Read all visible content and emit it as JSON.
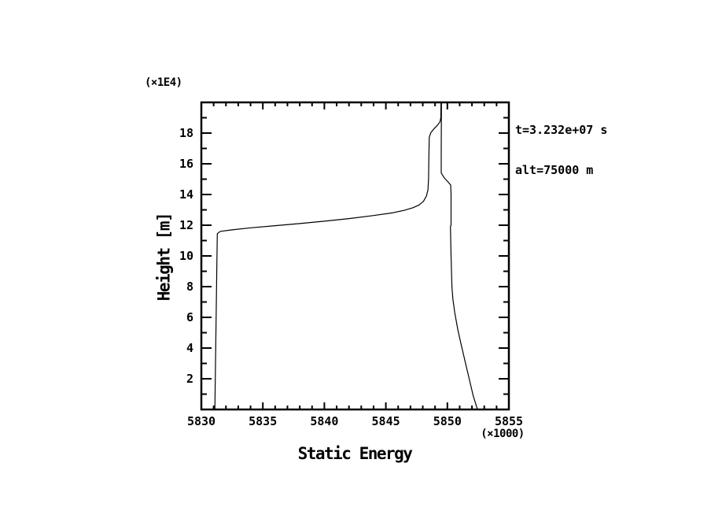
{
  "page": {
    "background": "#ffffff",
    "ink": "#000000"
  },
  "chart_data": {
    "type": "line",
    "title": "",
    "xlabel": "Static Energy",
    "ylabel": "Height [m]",
    "x_scale_label": "(×1000)",
    "y_scale_label": "(×1E4)",
    "annotation_lines": [
      "t=3.232e+07 s",
      "alt=75000 m"
    ],
    "xlim": [
      5830,
      5855
    ],
    "ylim": [
      0,
      20
    ],
    "x_major_ticks": [
      5830,
      5835,
      5840,
      5845,
      5850,
      5855
    ],
    "x_minor_step": 1,
    "y_major_ticks": [
      2,
      4,
      6,
      8,
      10,
      12,
      14,
      16,
      18
    ],
    "y_minor_step": 1,
    "grid": false,
    "legend": "none",
    "series": [
      {
        "name": "static-energy-profile",
        "color": "#000000",
        "points": [
          [
            5831.1,
            0.0
          ],
          [
            5831.15,
            3.0
          ],
          [
            5831.2,
            6.0
          ],
          [
            5831.25,
            9.0
          ],
          [
            5831.3,
            11.45
          ],
          [
            5831.55,
            11.6
          ],
          [
            5832.5,
            11.7
          ],
          [
            5834.0,
            11.83
          ],
          [
            5836.0,
            11.97
          ],
          [
            5838.0,
            12.11
          ],
          [
            5840.0,
            12.26
          ],
          [
            5842.0,
            12.43
          ],
          [
            5844.0,
            12.63
          ],
          [
            5845.5,
            12.8
          ],
          [
            5846.5,
            12.97
          ],
          [
            5847.2,
            13.14
          ],
          [
            5847.7,
            13.32
          ],
          [
            5848.05,
            13.55
          ],
          [
            5848.3,
            13.9
          ],
          [
            5848.42,
            14.3
          ],
          [
            5848.47,
            15.0
          ],
          [
            5848.5,
            16.5
          ],
          [
            5848.53,
            17.74
          ],
          [
            5848.65,
            18.02
          ],
          [
            5848.9,
            18.27
          ],
          [
            5849.2,
            18.52
          ],
          [
            5849.4,
            18.73
          ],
          [
            5849.47,
            19.0
          ],
          [
            5849.48,
            20.0
          ],
          [
            5849.52,
            20.0
          ],
          [
            5849.5,
            17.0
          ],
          [
            5849.5,
            15.4
          ],
          [
            5849.75,
            15.08
          ],
          [
            5850.05,
            14.82
          ],
          [
            5850.27,
            14.62
          ],
          [
            5850.3,
            14.0
          ],
          [
            5850.3,
            12.0
          ],
          [
            5850.25,
            11.9
          ],
          [
            5850.3,
            10.0
          ],
          [
            5850.37,
            8.0
          ],
          [
            5850.45,
            7.2
          ],
          [
            5850.6,
            6.3
          ],
          [
            5850.85,
            5.2
          ],
          [
            5851.1,
            4.3
          ],
          [
            5851.45,
            3.1
          ],
          [
            5851.8,
            1.9
          ],
          [
            5852.1,
            0.9
          ],
          [
            5852.45,
            0.0
          ]
        ]
      }
    ]
  }
}
